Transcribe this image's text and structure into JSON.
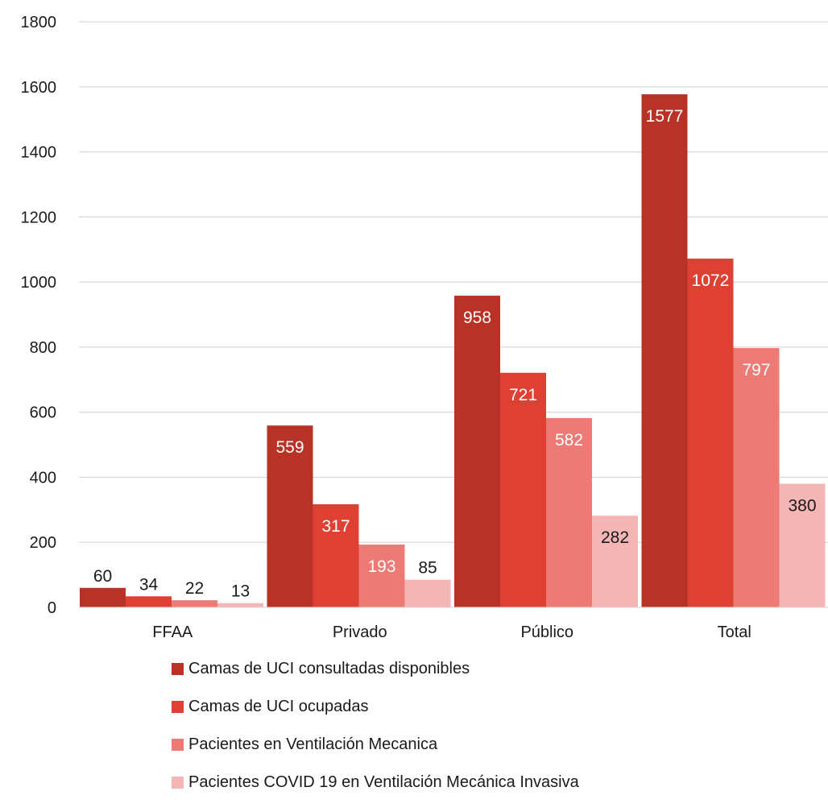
{
  "chart_data": {
    "type": "bar",
    "title": "",
    "xlabel": "",
    "ylabel": "",
    "categories": [
      "FFAA",
      "Privado",
      "Público",
      "Total"
    ],
    "ylim": [
      0,
      1800
    ],
    "yticks": [
      0,
      200,
      400,
      600,
      800,
      1000,
      1200,
      1400,
      1600,
      1800
    ],
    "grid": true,
    "legend_position": "bottom",
    "series": [
      {
        "name": "Camas de UCI consultadas disponibles",
        "color": "#b83226",
        "values": [
          60,
          559,
          958,
          1577
        ]
      },
      {
        "name": "Camas de UCI ocupadas",
        "color": "#df4034",
        "values": [
          34,
          317,
          721,
          1072
        ]
      },
      {
        "name": "Pacientes en Ventilación Mecanica",
        "color": "#ed7a74",
        "values": [
          22,
          193,
          582,
          797
        ]
      },
      {
        "name": "Pacientes COVID 19 en Ventilación Mecánica Invasiva",
        "color": "#f3b6b4",
        "values": [
          13,
          85,
          282,
          380
        ]
      }
    ]
  }
}
